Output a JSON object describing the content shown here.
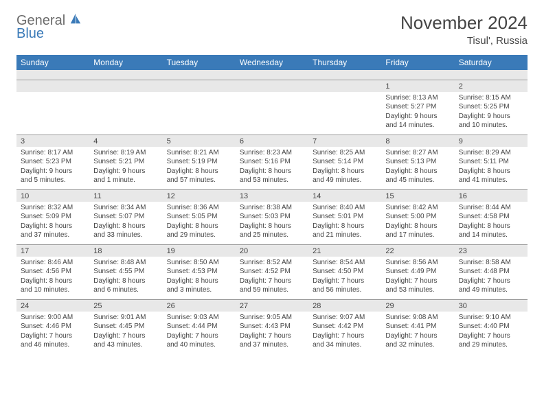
{
  "logo": {
    "line1": "General",
    "line2": "Blue"
  },
  "title": "November 2024",
  "location": "Tisul', Russia",
  "colors": {
    "header_bg": "#3a7ab8",
    "header_text": "#ffffff",
    "date_bg": "#e8e8e8",
    "border": "#9a9a9a",
    "text": "#444444"
  },
  "day_names": [
    "Sunday",
    "Monday",
    "Tuesday",
    "Wednesday",
    "Thursday",
    "Friday",
    "Saturday"
  ],
  "weeks": [
    [
      null,
      null,
      null,
      null,
      null,
      {
        "date": "1",
        "sunrise": "8:13 AM",
        "sunset": "5:27 PM",
        "daylight": "9 hours and 14 minutes."
      },
      {
        "date": "2",
        "sunrise": "8:15 AM",
        "sunset": "5:25 PM",
        "daylight": "9 hours and 10 minutes."
      }
    ],
    [
      {
        "date": "3",
        "sunrise": "8:17 AM",
        "sunset": "5:23 PM",
        "daylight": "9 hours and 5 minutes."
      },
      {
        "date": "4",
        "sunrise": "8:19 AM",
        "sunset": "5:21 PM",
        "daylight": "9 hours and 1 minute."
      },
      {
        "date": "5",
        "sunrise": "8:21 AM",
        "sunset": "5:19 PM",
        "daylight": "8 hours and 57 minutes."
      },
      {
        "date": "6",
        "sunrise": "8:23 AM",
        "sunset": "5:16 PM",
        "daylight": "8 hours and 53 minutes."
      },
      {
        "date": "7",
        "sunrise": "8:25 AM",
        "sunset": "5:14 PM",
        "daylight": "8 hours and 49 minutes."
      },
      {
        "date": "8",
        "sunrise": "8:27 AM",
        "sunset": "5:13 PM",
        "daylight": "8 hours and 45 minutes."
      },
      {
        "date": "9",
        "sunrise": "8:29 AM",
        "sunset": "5:11 PM",
        "daylight": "8 hours and 41 minutes."
      }
    ],
    [
      {
        "date": "10",
        "sunrise": "8:32 AM",
        "sunset": "5:09 PM",
        "daylight": "8 hours and 37 minutes."
      },
      {
        "date": "11",
        "sunrise": "8:34 AM",
        "sunset": "5:07 PM",
        "daylight": "8 hours and 33 minutes."
      },
      {
        "date": "12",
        "sunrise": "8:36 AM",
        "sunset": "5:05 PM",
        "daylight": "8 hours and 29 minutes."
      },
      {
        "date": "13",
        "sunrise": "8:38 AM",
        "sunset": "5:03 PM",
        "daylight": "8 hours and 25 minutes."
      },
      {
        "date": "14",
        "sunrise": "8:40 AM",
        "sunset": "5:01 PM",
        "daylight": "8 hours and 21 minutes."
      },
      {
        "date": "15",
        "sunrise": "8:42 AM",
        "sunset": "5:00 PM",
        "daylight": "8 hours and 17 minutes."
      },
      {
        "date": "16",
        "sunrise": "8:44 AM",
        "sunset": "4:58 PM",
        "daylight": "8 hours and 14 minutes."
      }
    ],
    [
      {
        "date": "17",
        "sunrise": "8:46 AM",
        "sunset": "4:56 PM",
        "daylight": "8 hours and 10 minutes."
      },
      {
        "date": "18",
        "sunrise": "8:48 AM",
        "sunset": "4:55 PM",
        "daylight": "8 hours and 6 minutes."
      },
      {
        "date": "19",
        "sunrise": "8:50 AM",
        "sunset": "4:53 PM",
        "daylight": "8 hours and 3 minutes."
      },
      {
        "date": "20",
        "sunrise": "8:52 AM",
        "sunset": "4:52 PM",
        "daylight": "7 hours and 59 minutes."
      },
      {
        "date": "21",
        "sunrise": "8:54 AM",
        "sunset": "4:50 PM",
        "daylight": "7 hours and 56 minutes."
      },
      {
        "date": "22",
        "sunrise": "8:56 AM",
        "sunset": "4:49 PM",
        "daylight": "7 hours and 53 minutes."
      },
      {
        "date": "23",
        "sunrise": "8:58 AM",
        "sunset": "4:48 PM",
        "daylight": "7 hours and 49 minutes."
      }
    ],
    [
      {
        "date": "24",
        "sunrise": "9:00 AM",
        "sunset": "4:46 PM",
        "daylight": "7 hours and 46 minutes."
      },
      {
        "date": "25",
        "sunrise": "9:01 AM",
        "sunset": "4:45 PM",
        "daylight": "7 hours and 43 minutes."
      },
      {
        "date": "26",
        "sunrise": "9:03 AM",
        "sunset": "4:44 PM",
        "daylight": "7 hours and 40 minutes."
      },
      {
        "date": "27",
        "sunrise": "9:05 AM",
        "sunset": "4:43 PM",
        "daylight": "7 hours and 37 minutes."
      },
      {
        "date": "28",
        "sunrise": "9:07 AM",
        "sunset": "4:42 PM",
        "daylight": "7 hours and 34 minutes."
      },
      {
        "date": "29",
        "sunrise": "9:08 AM",
        "sunset": "4:41 PM",
        "daylight": "7 hours and 32 minutes."
      },
      {
        "date": "30",
        "sunrise": "9:10 AM",
        "sunset": "4:40 PM",
        "daylight": "7 hours and 29 minutes."
      }
    ]
  ]
}
